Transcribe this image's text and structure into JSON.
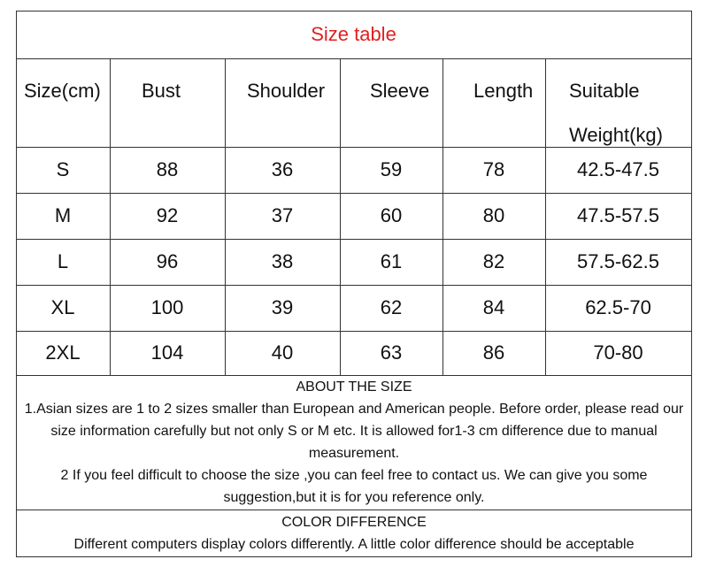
{
  "title": "Size table",
  "table": {
    "header": [
      "Size(cm)",
      "Bust",
      "Shoulder",
      "Sleeve",
      "Length",
      "Suitable Weight(kg)"
    ],
    "rows": [
      [
        "S",
        "88",
        "36",
        "59",
        "78",
        "42.5-47.5"
      ],
      [
        "M",
        "92",
        "37",
        "60",
        "80",
        "47.5-57.5"
      ],
      [
        "L",
        "96",
        "38",
        "61",
        "82",
        "57.5-62.5"
      ],
      [
        "XL",
        "100",
        "39",
        "62",
        "84",
        "62.5-70"
      ],
      [
        "2XL",
        "104",
        "40",
        "63",
        "86",
        "70-80"
      ]
    ]
  },
  "about": {
    "heading": "ABOUT THE SIZE",
    "paragraphs": [
      "1.Asian sizes are 1 to 2 sizes smaller than European and American people.     Before order, please read our size information carefully but not only S or M etc. It is allowed for1-3 cm difference due to manual measurement.",
      "2 If you feel difficult to choose the size ,you can feel free to contact us. We can give you some suggestion,but it is for you reference only."
    ]
  },
  "color": {
    "heading": "COLOR DIFFERENCE",
    "text": "Different computers display colors differently. A little color difference should be acceptable"
  }
}
